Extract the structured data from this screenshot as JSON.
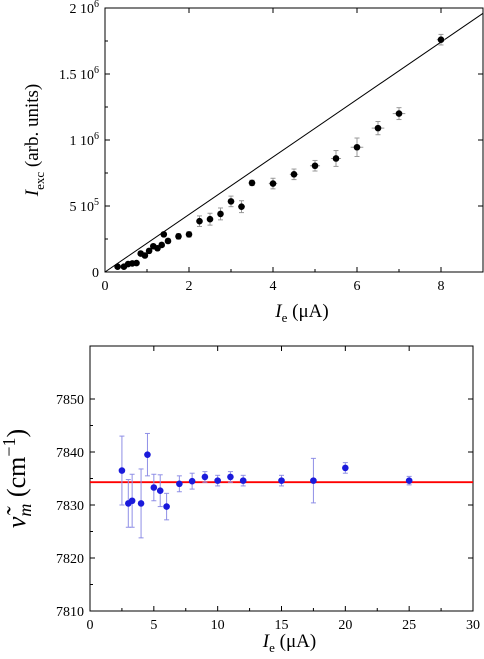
{
  "chart_data": [
    {
      "type": "scatter",
      "xlabel": {
        "main": "I",
        "sub": "e",
        "unit": " (μA)"
      },
      "ylabel": {
        "main": "I",
        "sub": "exc",
        "unit": " (arb. units)"
      },
      "xlim": [
        0,
        9
      ],
      "ylim": [
        0,
        2000000
      ],
      "xticks": [
        0,
        2,
        4,
        6,
        8
      ],
      "xtick_labels": [
        "0",
        "2",
        "4",
        "6",
        "8"
      ],
      "yticks": [
        0,
        500000,
        1000000,
        1500000,
        2000000
      ],
      "ytick_labels": [
        {
          "mant": "0",
          "exp": ""
        },
        {
          "mant": "5 10",
          "exp": "5"
        },
        {
          "mant": "1 10",
          "exp": "6"
        },
        {
          "mant": "1.5 10",
          "exp": "6"
        },
        {
          "mant": "2 10",
          "exp": "6"
        }
      ],
      "grid": false,
      "marker_color": "#000000",
      "errorbar_color": "#999999",
      "fit_line": {
        "x": [
          0,
          9
        ],
        "y": [
          0,
          1960000
        ],
        "color": "#000000"
      },
      "points": [
        {
          "x": 0.3,
          "y": 40000,
          "yerr": 6000,
          "xerr": 0
        },
        {
          "x": 0.45,
          "y": 40000,
          "yerr": 6000,
          "xerr": 0
        },
        {
          "x": 0.55,
          "y": 60000,
          "yerr": 8000,
          "xerr": 0
        },
        {
          "x": 0.65,
          "y": 65000,
          "yerr": 8000,
          "xerr": 0
        },
        {
          "x": 0.75,
          "y": 68000,
          "yerr": 8000,
          "xerr": 0
        },
        {
          "x": 0.85,
          "y": 140000,
          "yerr": 10000,
          "xerr": 0
        },
        {
          "x": 0.95,
          "y": 125000,
          "yerr": 10000,
          "xerr": 0
        },
        {
          "x": 1.05,
          "y": 160000,
          "yerr": 12000,
          "xerr": 0
        },
        {
          "x": 1.15,
          "y": 195000,
          "yerr": 12000,
          "xerr": 0
        },
        {
          "x": 1.25,
          "y": 180000,
          "yerr": 12000,
          "xerr": 0
        },
        {
          "x": 1.35,
          "y": 205000,
          "yerr": 15000,
          "xerr": 0
        },
        {
          "x": 1.4,
          "y": 285000,
          "yerr": 15000,
          "xerr": 0
        },
        {
          "x": 1.5,
          "y": 235000,
          "yerr": 15000,
          "xerr": 0
        },
        {
          "x": 1.75,
          "y": 270000,
          "yerr": 20000,
          "xerr": 0
        },
        {
          "x": 2.0,
          "y": 285000,
          "yerr": 20000,
          "xerr": 0
        },
        {
          "x": 2.25,
          "y": 385000,
          "yerr": 40000,
          "xerr": 0
        },
        {
          "x": 2.5,
          "y": 400000,
          "yerr": 45000,
          "xerr": 0.06
        },
        {
          "x": 2.75,
          "y": 440000,
          "yerr": 45000,
          "xerr": 0.06
        },
        {
          "x": 3.0,
          "y": 535000,
          "yerr": 40000,
          "xerr": 0.08
        },
        {
          "x": 3.25,
          "y": 495000,
          "yerr": 45000,
          "xerr": 0.08
        },
        {
          "x": 3.5,
          "y": 675000,
          "yerr": 20000,
          "xerr": 0.08
        },
        {
          "x": 4.0,
          "y": 670000,
          "yerr": 40000,
          "xerr": 0.1
        },
        {
          "x": 4.5,
          "y": 740000,
          "yerr": 40000,
          "xerr": 0.1
        },
        {
          "x": 5.0,
          "y": 805000,
          "yerr": 40000,
          "xerr": 0.12
        },
        {
          "x": 5.5,
          "y": 860000,
          "yerr": 60000,
          "xerr": 0.12
        },
        {
          "x": 6.0,
          "y": 945000,
          "yerr": 70000,
          "xerr": 0.15
        },
        {
          "x": 6.5,
          "y": 1090000,
          "yerr": 50000,
          "xerr": 0.15
        },
        {
          "x": 7.0,
          "y": 1200000,
          "yerr": 45000,
          "xerr": 0.15
        },
        {
          "x": 8.0,
          "y": 1760000,
          "yerr": 40000,
          "xerr": 0.1
        }
      ]
    },
    {
      "type": "scatter",
      "xlabel": {
        "main": "I",
        "sub": "e",
        "unit": " (μA)"
      },
      "ylabel": {
        "main": "ν̃",
        "sub": "m",
        "unit": "  (cm",
        "sup": "−1",
        "close": ")"
      },
      "xlim": [
        0,
        30
      ],
      "ylim": [
        7810,
        7860
      ],
      "xticks": [
        0,
        5,
        10,
        15,
        20,
        25,
        30
      ],
      "xtick_labels": [
        "0",
        "5",
        "10",
        "15",
        "20",
        "25",
        "30"
      ],
      "yticks": [
        7810,
        7820,
        7830,
        7840,
        7850
      ],
      "ytick_labels": [
        "7810",
        "7820",
        "7830",
        "7840",
        "7850"
      ],
      "grid": false,
      "marker_color": "#1a1adb",
      "errorbar_color": "#8f8fe6",
      "reference_line": {
        "y": 7834.3,
        "color": "#ff0000"
      },
      "points": [
        {
          "x": 2.5,
          "y": 7836.5,
          "yerr": 6.5
        },
        {
          "x": 3.0,
          "y": 7830.3,
          "yerr": 4.5
        },
        {
          "x": 3.3,
          "y": 7830.8,
          "yerr": 5.0
        },
        {
          "x": 4.0,
          "y": 7830.3,
          "yerr": 6.5
        },
        {
          "x": 4.5,
          "y": 7839.5,
          "yerr": 4.0
        },
        {
          "x": 5.0,
          "y": 7833.3,
          "yerr": 2.5
        },
        {
          "x": 5.5,
          "y": 7832.7,
          "yerr": 3.0
        },
        {
          "x": 6.0,
          "y": 7829.7,
          "yerr": 2.5
        },
        {
          "x": 7.0,
          "y": 7834.0,
          "yerr": 1.5
        },
        {
          "x": 8.0,
          "y": 7834.5,
          "yerr": 1.5
        },
        {
          "x": 9.0,
          "y": 7835.3,
          "yerr": 1.0
        },
        {
          "x": 10.0,
          "y": 7834.6,
          "yerr": 1.0
        },
        {
          "x": 11.0,
          "y": 7835.3,
          "yerr": 1.0
        },
        {
          "x": 12.0,
          "y": 7834.6,
          "yerr": 1.0
        },
        {
          "x": 15.0,
          "y": 7834.6,
          "yerr": 1.0
        },
        {
          "x": 17.5,
          "y": 7834.6,
          "yerr": 4.2
        },
        {
          "x": 20.0,
          "y": 7837.0,
          "yerr": 1.0
        },
        {
          "x": 25.0,
          "y": 7834.6,
          "yerr": 0.8
        }
      ]
    }
  ]
}
